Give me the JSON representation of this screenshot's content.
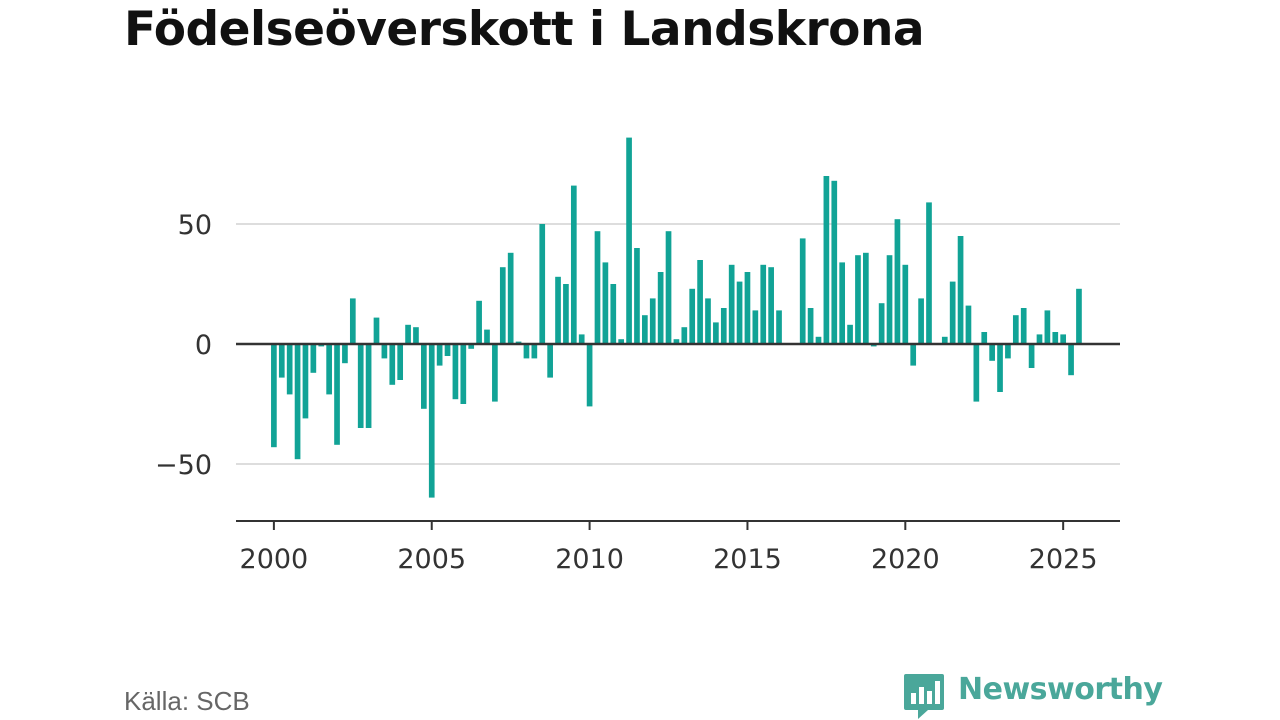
{
  "title": "Födelseöverskott i Landskrona",
  "source": "Källa: SCB",
  "brand": {
    "name": "Newsworthy",
    "color": "#4aa79a"
  },
  "colors": {
    "bar": "#11a396",
    "grid": "#dddddd",
    "axis": "#333333",
    "text": "#333333"
  },
  "chart_data": {
    "type": "bar",
    "title": "Födelseöverskott i Landskrona",
    "xlabel": "",
    "ylabel": "",
    "x_ticks": [
      "2000",
      "2005",
      "2010",
      "2015",
      "2020",
      "2025"
    ],
    "y_ticks": [
      50,
      0,
      -50
    ],
    "y_tick_labels": [
      "50",
      "0",
      "−50"
    ],
    "ylim": [
      -75,
      90
    ],
    "xlim": [
      1998.8,
      2026.8
    ],
    "grid": "horizontal",
    "series": [
      {
        "start_year": 2000,
        "start_quarter": 1,
        "values": [
          -43,
          -14,
          -21,
          -48,
          -31,
          -12,
          -1,
          -21,
          -42,
          -8,
          19,
          -35,
          -35,
          11,
          -6,
          -17,
          -15,
          8,
          7,
          -27,
          -64,
          -9,
          -5,
          -23,
          -25,
          -2,
          18,
          6,
          -24,
          32,
          38,
          1,
          -6,
          -6,
          50,
          -14,
          28,
          25,
          66,
          4,
          -26,
          47,
          34,
          25,
          2,
          86,
          40,
          12,
          19,
          30,
          47,
          2,
          7,
          23,
          35,
          19,
          9,
          15,
          33,
          26,
          30,
          14,
          33,
          32,
          14,
          0,
          0,
          44,
          15,
          3,
          70,
          68,
          34,
          8,
          37,
          38,
          -1,
          17,
          37,
          52,
          33,
          -9,
          19,
          59,
          0,
          3,
          26,
          45,
          16,
          -24,
          5,
          -7,
          -20,
          -6,
          12,
          15,
          -10,
          4,
          14,
          5,
          4,
          -13,
          23
        ]
      }
    ]
  }
}
